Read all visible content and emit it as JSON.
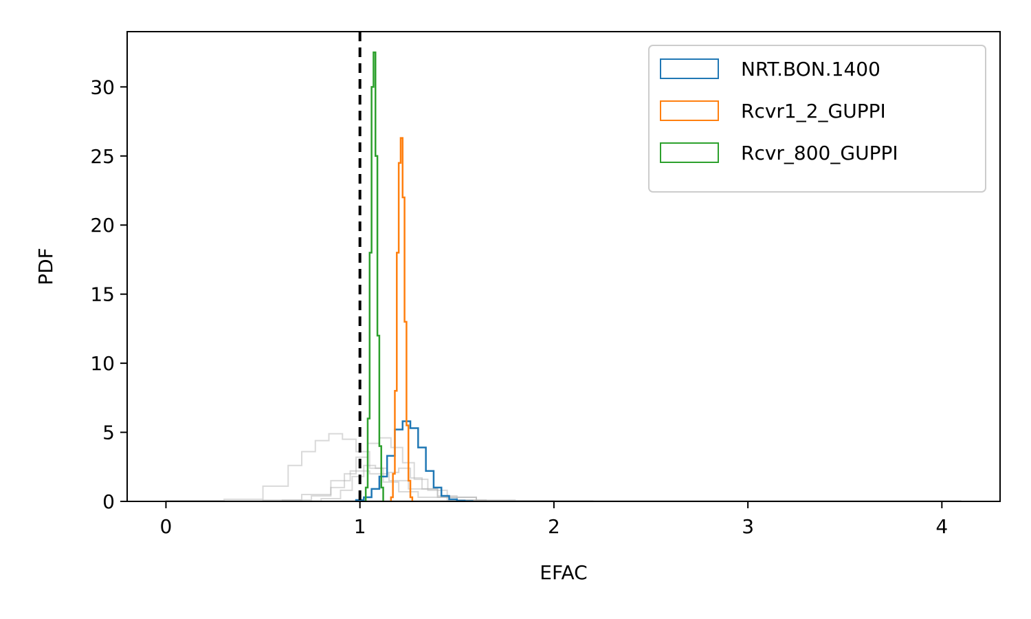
{
  "chart_data": {
    "type": "histogram",
    "xlabel": "EFAC",
    "ylabel": "PDF",
    "xlim": [
      -0.2,
      4.3
    ],
    "ylim": [
      0,
      34
    ],
    "xticks": [
      0,
      1,
      2,
      3,
      4
    ],
    "yticks": [
      0,
      5,
      10,
      15,
      20,
      25,
      30
    ],
    "grid": false,
    "legend_position": "top-right",
    "reference_line": {
      "x": 1.0,
      "style": "dashed",
      "color": "#000000"
    },
    "series": [
      {
        "name": "NRT.BON.1400",
        "color": "#1f77b4",
        "bin_edges": [
          0.98,
          1.02,
          1.06,
          1.1,
          1.14,
          1.18,
          1.22,
          1.26,
          1.3,
          1.34,
          1.38,
          1.42,
          1.46,
          1.5,
          1.54,
          1.58
        ],
        "values": [
          0.1,
          0.3,
          0.9,
          1.8,
          3.3,
          5.2,
          5.8,
          5.3,
          3.9,
          2.2,
          1.0,
          0.4,
          0.15,
          0.05,
          0.02
        ]
      },
      {
        "name": "Rcvr1_2_GUPPI",
        "color": "#ff7f0e",
        "bin_edges": [
          1.16,
          1.17,
          1.18,
          1.19,
          1.2,
          1.21,
          1.22,
          1.23,
          1.24,
          1.25,
          1.26,
          1.27
        ],
        "values": [
          0.3,
          2.0,
          8.0,
          18.0,
          24.5,
          26.3,
          22.0,
          13.0,
          5.5,
          1.5,
          0.3
        ]
      },
      {
        "name": "Rcvr_800_GUPPI",
        "color": "#2ca02c",
        "bin_edges": [
          1.03,
          1.04,
          1.05,
          1.06,
          1.07,
          1.08,
          1.09,
          1.1,
          1.11,
          1.12
        ],
        "values": [
          1.0,
          6.0,
          18.0,
          30.0,
          32.5,
          25.0,
          12.0,
          4.0,
          1.0
        ]
      }
    ],
    "background_series": [
      {
        "color": "#aaaaaa",
        "bin_edges": [
          0.0,
          0.3,
          0.5,
          0.63,
          0.7,
          0.77,
          0.84,
          0.91,
          0.98,
          1.05,
          1.12,
          1.2,
          1.3,
          1.45,
          1.6
        ],
        "values": [
          0.05,
          0.15,
          1.1,
          2.6,
          3.6,
          4.4,
          4.9,
          4.5,
          3.6,
          2.4,
          1.4,
          0.7,
          0.3,
          0.1
        ]
      },
      {
        "color": "#aaaaaa",
        "bin_edges": [
          0.6,
          0.75,
          0.85,
          0.92,
          0.98,
          1.04,
          1.1,
          1.16,
          1.22,
          1.28,
          1.35,
          1.45,
          1.6,
          1.8,
          2.2
        ],
        "values": [
          0.1,
          0.4,
          1.0,
          2.0,
          3.2,
          4.2,
          4.6,
          3.9,
          2.8,
          1.6,
          0.8,
          0.3,
          0.1,
          0.03
        ]
      },
      {
        "color": "#aaaaaa",
        "bin_edges": [
          0.8,
          0.9,
          0.96,
          1.02,
          1.08,
          1.14,
          1.2,
          1.26,
          1.32,
          1.4,
          1.5,
          1.65
        ],
        "values": [
          0.2,
          0.8,
          1.8,
          2.6,
          2.4,
          2.1,
          2.4,
          1.7,
          0.9,
          0.4,
          0.1
        ]
      },
      {
        "color": "#aaaaaa",
        "bin_edges": [
          0.5,
          0.7,
          0.85,
          0.95,
          1.05,
          1.15,
          1.25,
          1.4,
          1.6,
          2.0
        ],
        "values": [
          0.1,
          0.5,
          1.5,
          2.2,
          2.0,
          1.5,
          0.9,
          0.3,
          0.05
        ]
      }
    ]
  }
}
